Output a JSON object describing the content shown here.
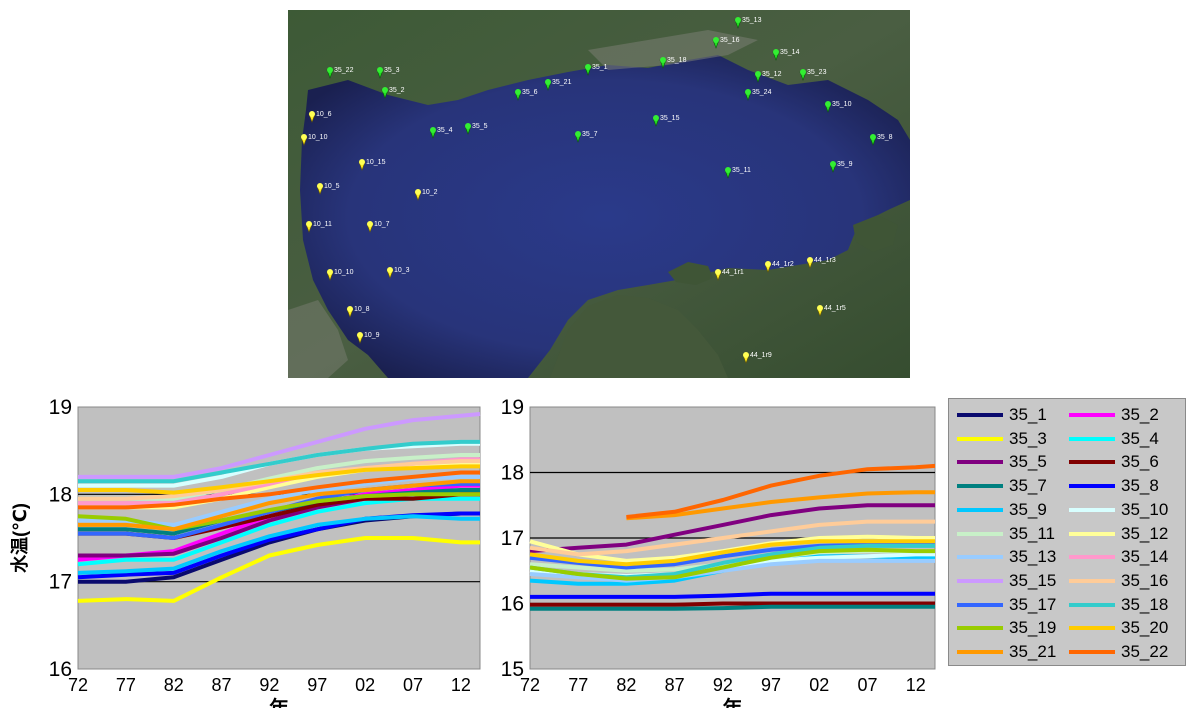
{
  "map": {
    "green_pins": [
      "35_22",
      "35_3",
      "35_2",
      "35_4",
      "35_5",
      "35_6",
      "35_21",
      "35_1",
      "35_18",
      "35_16",
      "35_13",
      "35_14",
      "35_12",
      "35_23",
      "35_24",
      "35_10",
      "35_8",
      "35_7",
      "35_15",
      "35_9",
      "35_11"
    ],
    "yellow_pins": [
      "10_6",
      "10_10",
      "10_15",
      "10_5",
      "10_2",
      "10_11",
      "10_7",
      "10_10",
      "10_3",
      "10_8",
      "10_9",
      "44_1r1",
      "44_1r2",
      "44_1r3",
      "44_1r5",
      "44_1r9"
    ]
  },
  "legend": {
    "items": [
      {
        "label": "35_1",
        "color": "#0a0a6e"
      },
      {
        "label": "35_2",
        "color": "#ff00ff"
      },
      {
        "label": "35_3",
        "color": "#ffff00"
      },
      {
        "label": "35_4",
        "color": "#00ffff"
      },
      {
        "label": "35_5",
        "color": "#800080"
      },
      {
        "label": "35_6",
        "color": "#800000"
      },
      {
        "label": "35_7",
        "color": "#008080"
      },
      {
        "label": "35_8",
        "color": "#0000ff"
      },
      {
        "label": "35_9",
        "color": "#00c8ff"
      },
      {
        "label": "35_10",
        "color": "#d8ffff"
      },
      {
        "label": "35_11",
        "color": "#c8f0c8"
      },
      {
        "label": "35_12",
        "color": "#ffff99"
      },
      {
        "label": "35_13",
        "color": "#99ccff"
      },
      {
        "label": "35_14",
        "color": "#ff99cc"
      },
      {
        "label": "35_15",
        "color": "#cc99ff"
      },
      {
        "label": "35_16",
        "color": "#ffcc99"
      },
      {
        "label": "35_17",
        "color": "#3366ff"
      },
      {
        "label": "35_18",
        "color": "#33cccc"
      },
      {
        "label": "35_19",
        "color": "#99cc00"
      },
      {
        "label": "35_20",
        "color": "#ffcc00"
      },
      {
        "label": "35_21",
        "color": "#ff9900"
      },
      {
        "label": "35_22",
        "color": "#ff6600"
      }
    ]
  },
  "chart_data": [
    {
      "type": "line",
      "xlabel": "年",
      "ylabel": "水温(℃)",
      "xticks": [
        "72",
        "77",
        "82",
        "87",
        "92",
        "97",
        "02",
        "07",
        "12"
      ],
      "x": [
        1972,
        1977,
        1982,
        1987,
        1992,
        1997,
        2002,
        2007,
        2012,
        2014
      ],
      "ylim": [
        16,
        19
      ],
      "yticks": [
        16,
        17,
        18,
        19
      ],
      "grid": "horizontal",
      "series": [
        {
          "name": "35_1",
          "values": [
            17.0,
            17.0,
            17.05,
            17.25,
            17.45,
            17.6,
            17.7,
            17.75,
            17.78,
            17.78
          ]
        },
        {
          "name": "35_2",
          "values": [
            17.25,
            17.3,
            17.35,
            17.55,
            17.75,
            17.9,
            18.0,
            18.05,
            18.1,
            18.1
          ]
        },
        {
          "name": "35_3",
          "values": [
            16.78,
            16.8,
            16.78,
            17.05,
            17.3,
            17.42,
            17.5,
            17.5,
            17.45,
            17.45
          ]
        },
        {
          "name": "35_4",
          "values": [
            17.2,
            17.25,
            17.25,
            17.45,
            17.65,
            17.8,
            17.9,
            17.95,
            17.95,
            17.95
          ]
        },
        {
          "name": "35_5",
          "values": [
            17.3,
            17.3,
            17.32,
            17.5,
            17.7,
            17.85,
            17.95,
            18.0,
            18.0,
            18.0
          ]
        },
        {
          "name": "35_6",
          "values": [
            17.55,
            17.55,
            17.5,
            17.62,
            17.75,
            17.88,
            17.95,
            17.95,
            18.0,
            18.0
          ]
        },
        {
          "name": "35_7",
          "values": [
            17.6,
            17.6,
            17.55,
            17.7,
            17.8,
            17.92,
            17.98,
            18.02,
            18.05,
            18.05
          ]
        },
        {
          "name": "35_8",
          "values": [
            17.05,
            17.08,
            17.1,
            17.3,
            17.48,
            17.6,
            17.72,
            17.76,
            17.78,
            17.78
          ]
        },
        {
          "name": "35_9",
          "values": [
            17.1,
            17.12,
            17.15,
            17.35,
            17.52,
            17.65,
            17.72,
            17.75,
            17.72,
            17.72
          ]
        },
        {
          "name": "35_10",
          "values": [
            18.1,
            18.1,
            18.1,
            18.2,
            18.35,
            18.45,
            18.52,
            18.55,
            18.58,
            18.58
          ]
        },
        {
          "name": "35_11",
          "values": [
            17.95,
            17.95,
            17.95,
            18.05,
            18.18,
            18.3,
            18.38,
            18.42,
            18.45,
            18.45
          ]
        },
        {
          "name": "35_12",
          "values": [
            17.85,
            17.85,
            17.85,
            17.95,
            18.08,
            18.2,
            18.28,
            18.32,
            18.35,
            18.35
          ]
        },
        {
          "name": "35_13",
          "values": [
            17.7,
            17.7,
            17.65,
            17.8,
            17.95,
            18.05,
            18.12,
            18.18,
            18.2,
            18.2
          ]
        },
        {
          "name": "35_14",
          "values": [
            17.9,
            17.9,
            17.9,
            18.0,
            18.12,
            18.25,
            18.3,
            18.35,
            18.4,
            18.4
          ]
        },
        {
          "name": "35_15",
          "values": [
            18.2,
            18.2,
            18.2,
            18.3,
            18.45,
            18.6,
            18.75,
            18.85,
            18.9,
            18.92
          ]
        },
        {
          "name": "35_16",
          "values": [
            17.95,
            17.95,
            17.98,
            18.05,
            18.15,
            18.25,
            18.3,
            18.35,
            18.38,
            18.38
          ]
        },
        {
          "name": "35_17",
          "values": [
            17.55,
            17.55,
            17.5,
            17.65,
            17.8,
            17.95,
            18.05,
            18.1,
            18.12,
            18.12
          ]
        },
        {
          "name": "35_18",
          "values": [
            18.15,
            18.15,
            18.15,
            18.25,
            18.35,
            18.45,
            18.52,
            18.58,
            18.6,
            18.6
          ]
        },
        {
          "name": "35_19",
          "values": [
            17.75,
            17.72,
            17.6,
            17.7,
            17.82,
            17.92,
            17.98,
            18.0,
            18.0,
            18.0
          ]
        },
        {
          "name": "35_20",
          "values": [
            18.05,
            18.05,
            18.02,
            18.08,
            18.15,
            18.22,
            18.28,
            18.3,
            18.32,
            18.32
          ]
        },
        {
          "name": "35_21",
          "values": [
            17.65,
            17.65,
            17.6,
            17.75,
            17.9,
            18.0,
            18.05,
            18.1,
            18.15,
            18.15
          ]
        },
        {
          "name": "35_22",
          "values": [
            17.85,
            17.85,
            17.88,
            17.95,
            18.0,
            18.08,
            18.15,
            18.2,
            18.25,
            18.25
          ]
        }
      ]
    },
    {
      "type": "line",
      "xlabel": "年",
      "ylabel": "",
      "xticks": [
        "72",
        "77",
        "82",
        "87",
        "92",
        "97",
        "02",
        "07",
        "12"
      ],
      "x": [
        1972,
        1977,
        1982,
        1987,
        1992,
        1997,
        2002,
        2007,
        2012,
        2014
      ],
      "ylim": [
        15,
        19
      ],
      "yticks": [
        15,
        16,
        17,
        18,
        19
      ],
      "grid": "horizontal",
      "series": [
        {
          "name": "35_5",
          "values": [
            16.8,
            16.85,
            16.9,
            17.05,
            17.2,
            17.35,
            17.45,
            17.5,
            17.5,
            17.5
          ]
        },
        {
          "name": "35_6",
          "values": [
            15.98,
            15.98,
            15.98,
            15.98,
            16.0,
            16.0,
            16.0,
            16.0,
            16.0,
            16.0
          ]
        },
        {
          "name": "35_7",
          "values": [
            15.92,
            15.92,
            15.92,
            15.92,
            15.93,
            15.95,
            15.95,
            15.95,
            15.95,
            15.95
          ]
        },
        {
          "name": "35_8",
          "values": [
            16.1,
            16.1,
            16.1,
            16.1,
            16.12,
            16.15,
            16.15,
            16.15,
            16.15,
            16.15
          ]
        },
        {
          "name": "35_9",
          "values": [
            16.35,
            16.3,
            16.3,
            16.35,
            16.5,
            16.65,
            16.72,
            16.72,
            16.7,
            16.7
          ]
        },
        {
          "name": "35_10",
          "values": [
            16.5,
            16.45,
            16.42,
            16.45,
            16.55,
            16.65,
            16.7,
            16.72,
            16.75,
            16.75
          ]
        },
        {
          "name": "35_11",
          "values": [
            16.6,
            16.55,
            16.5,
            16.52,
            16.6,
            16.7,
            16.78,
            16.8,
            16.8,
            16.8
          ]
        },
        {
          "name": "35_12",
          "values": [
            16.95,
            16.75,
            16.65,
            16.7,
            16.8,
            16.92,
            17.0,
            17.02,
            17.0,
            17.0
          ]
        },
        {
          "name": "35_13",
          "values": [
            16.45,
            16.4,
            16.35,
            16.4,
            16.5,
            16.6,
            16.65,
            16.65,
            16.65,
            16.65
          ]
        },
        {
          "name": "35_16",
          "values": [
            16.85,
            16.75,
            16.8,
            16.9,
            17.0,
            17.1,
            17.2,
            17.25,
            17.25,
            17.25
          ]
        },
        {
          "name": "35_17",
          "values": [
            16.7,
            16.62,
            16.55,
            16.6,
            16.72,
            16.82,
            16.88,
            16.9,
            16.9,
            16.9
          ]
        },
        {
          "name": "35_18",
          "values": [
            16.55,
            16.45,
            16.4,
            16.45,
            16.62,
            16.75,
            16.85,
            16.88,
            16.88,
            16.88
          ]
        },
        {
          "name": "35_19",
          "values": [
            16.55,
            16.45,
            16.38,
            16.4,
            16.55,
            16.7,
            16.8,
            16.82,
            16.8,
            16.8
          ]
        },
        {
          "name": "35_20",
          "values": [
            16.75,
            16.65,
            16.6,
            16.65,
            16.78,
            16.9,
            16.95,
            16.95,
            16.95,
            16.95
          ]
        },
        {
          "name": "35_21",
          "values": [
            null,
            null,
            17.3,
            17.35,
            17.45,
            17.55,
            17.62,
            17.68,
            17.7,
            17.7
          ]
        },
        {
          "name": "35_22",
          "values": [
            null,
            null,
            17.32,
            17.4,
            17.58,
            17.8,
            17.95,
            18.05,
            18.08,
            18.1
          ]
        }
      ]
    }
  ]
}
